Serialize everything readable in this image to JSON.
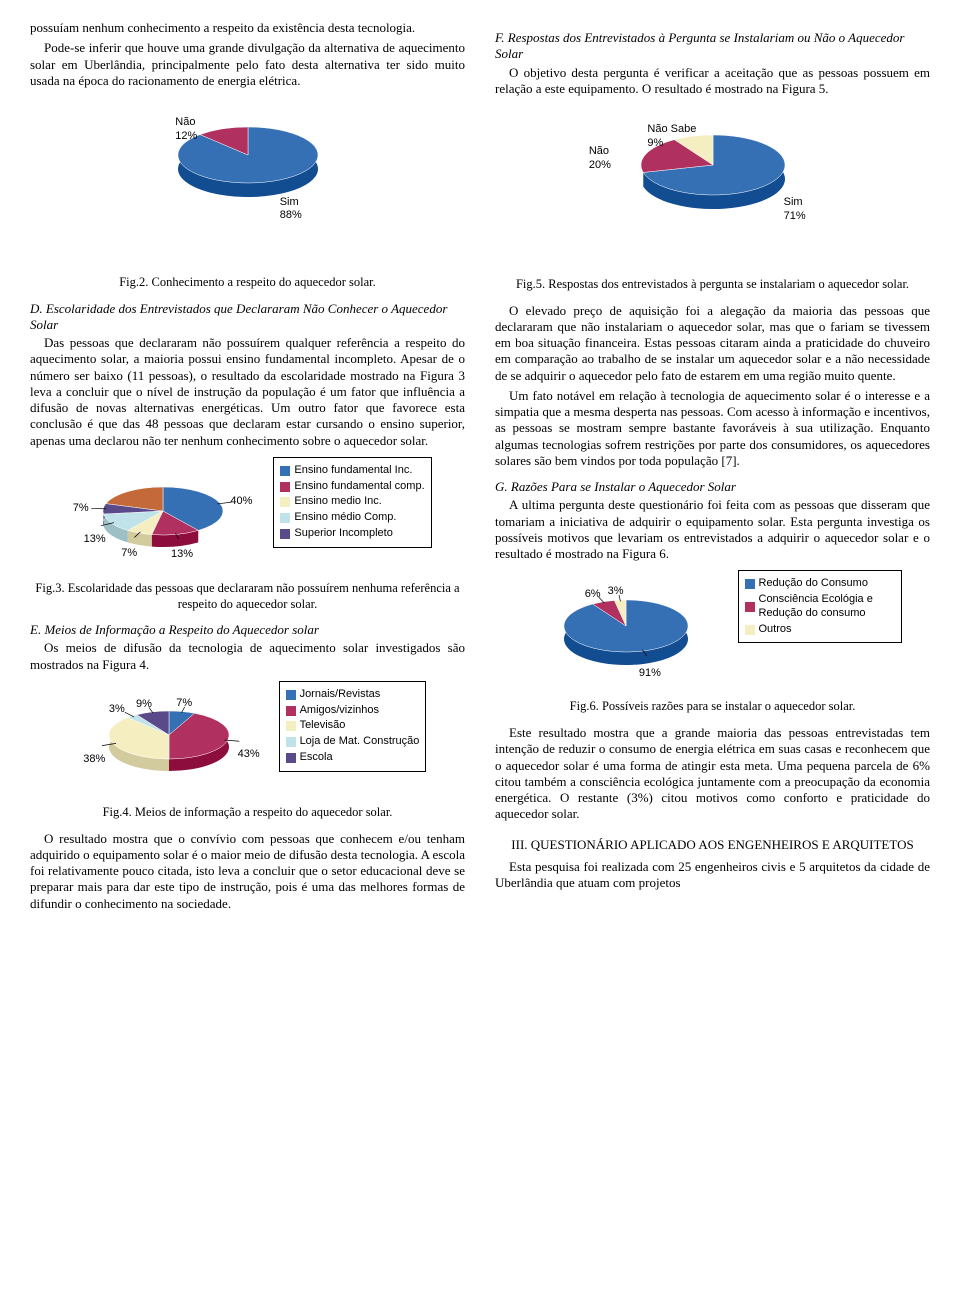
{
  "left": {
    "p1": "possuíam nenhum conhecimento a respeito da existência desta tecnologia.",
    "p2": "Pode-se inferir que houve uma grande divulgação da alternativa de aquecimento solar em Uberlândia, principalmente pelo fato desta alternativa ter sido muito usada na época do racionamento de energia elétrica.",
    "fig2cap": "Fig.2. Conhecimento a respeito do aquecedor solar.",
    "secD": "D. Escolaridade dos Entrevistados que Declararam Não Conhecer o Aquecedor Solar",
    "p3": "Das pessoas que declararam não possuírem qualquer referência a respeito do aquecimento solar, a maioria possui ensino fundamental incompleto. Apesar de o número ser baixo (11 pessoas), o resultado da escolaridade mostrado na Figura 3 leva a concluir que o nível de instrução da população é um fator que influência a difusão de novas alternativas energéticas. Um outro fator que favorece esta conclusão é que das 48 pessoas que declaram estar cursando o ensino superior, apenas uma declarou não ter nenhum conhecimento sobre o aquecedor solar.",
    "fig3cap": "Fig.3. Escolaridade das pessoas que declararam não possuírem nenhuma referência a respeito do aquecedor solar.",
    "secE": "E. Meios de Informação a Respeito do Aquecedor solar",
    "p4": "Os meios de difusão da tecnologia de aquecimento solar investigados são mostrados na Figura 4.",
    "fig4cap": "Fig.4. Meios de informação a respeito do aquecedor solar.",
    "p5": "O resultado mostra que o convívio com pessoas que conhecem e/ou tenham adquirido o equipamento solar é o maior meio de difusão desta tecnologia. A escola foi relativamente pouco citada, isto leva a concluir que o setor educacional deve se preparar mais para dar este tipo de instrução, pois é uma das melhores formas de difundir o conhecimento na sociedade."
  },
  "right": {
    "secF": "F. Respostas dos Entrevistados à Pergunta se Instalariam ou Não o Aquecedor Solar",
    "p1": "O objetivo desta pergunta é verificar a aceitação que as pessoas possuem em relação a este equipamento. O resultado é mostrado na Figura 5.",
    "fig5cap": "Fig.5. Respostas dos entrevistados à pergunta se instalariam o aquecedor solar.",
    "p2": "O elevado preço de aquisição foi a alegação da maioria das pessoas que declararam que não instalariam o aquecedor solar, mas que o fariam se tivessem em boa situação financeira. Estas pessoas citaram ainda a praticidade do chuveiro em comparação ao trabalho de se instalar um aquecedor solar e a não necessidade de se adquirir o aquecedor pelo fato de estarem em uma região muito quente.",
    "p3": "Um fato notável em relação à tecnologia de aquecimento solar é o interesse e a simpatia que a mesma desperta nas pessoas. Com acesso à informação e incentivos, as pessoas se mostram sempre bastante favoráveis à sua utilização. Enquanto algumas tecnologias sofrem restrições por parte dos consumidores, os aquecedores solares são bem vindos por toda população [7].",
    "secG": "G. Razões Para se Instalar o Aquecedor Solar",
    "p4": "A ultima pergunta deste questionário foi feita com as pessoas que disseram que tomariam a iniciativa de adquirir o equipamento solar. Esta pergunta investiga os possíveis motivos que levariam os entrevistados a adquirir o aquecedor solar e o resultado é mostrado na Figura 6.",
    "fig6cap": "Fig.6. Possíveis razões para se instalar o aquecedor solar.",
    "p5": "Este resultado mostra que a grande maioria das pessoas entrevistadas tem intenção de reduzir o consumo de energia elétrica em suas casas e reconhecem que o aquecedor solar é uma forma de atingir esta meta. Uma pequena parcela de 6% citou também a consciência ecológica juntamente com a preocupação da economia energética. O restante (3%) citou motivos como conforto e praticidade do aquecedor solar.",
    "h3": "III. QUESTIONÁRIO APLICADO AOS ENGENHEIROS E ARQUITETOS",
    "p6": "Esta pesquisa foi realizada com 25 engenheiros civis e 5 arquitetos da cidade de Uberlândia que atuam com projetos"
  },
  "charts": {
    "fig2": {
      "type": "pie",
      "slices": [
        {
          "label": "Sim",
          "pct": 88,
          "color": "#3570b5"
        },
        {
          "label": "Não",
          "pct": 12,
          "color": "#b03060"
        }
      ],
      "label_fontsize": 11,
      "label_font": "Arial",
      "background": "#ffffff",
      "depth_color_shift": -30
    },
    "fig5": {
      "type": "pie",
      "slices": [
        {
          "label": "Sim",
          "pct": 71,
          "color": "#3570b5"
        },
        {
          "label": "Não",
          "pct": 20,
          "color": "#b03060"
        },
        {
          "label": "Não Sabe",
          "pct": 9,
          "color": "#f5eec0"
        }
      ],
      "label_fontsize": 11,
      "label_font": "Arial",
      "background": "#ffffff",
      "depth_color_shift": -30
    },
    "fig3": {
      "type": "pie",
      "slices": [
        {
          "label": "Ensino fundamental Inc.",
          "pct": 40,
          "color": "#3570b5",
          "callout": "40%"
        },
        {
          "label": "Ensino fundamental comp.",
          "pct": 13,
          "color": "#b03060",
          "callout": "13%"
        },
        {
          "label": "Ensino medio Inc.",
          "pct": 7,
          "color": "#f5eec0",
          "callout": "7%"
        },
        {
          "label": "Ensino médio Comp.",
          "pct": 13,
          "color": "#bfe3e8",
          "callout": "13%"
        },
        {
          "label": "Superior Incompleto",
          "pct": 7,
          "color": "#5a4a8a",
          "callout": "7%"
        },
        {
          "label": "",
          "pct": 20,
          "color": "#c46a3a",
          "callout": ""
        }
      ],
      "label_fontsize": 11,
      "legend_border": "#000000",
      "background": "#ffffff"
    },
    "fig4": {
      "type": "pie",
      "slices": [
        {
          "label": "Jornais/Revistas",
          "pct": 7,
          "color": "#3570b5",
          "callout": "7%"
        },
        {
          "label": "Amigos/vizinhos",
          "pct": 43,
          "color": "#b03060",
          "callout": "43%"
        },
        {
          "label": "Televisão",
          "pct": 38,
          "color": "#f5eec0",
          "callout": "38%"
        },
        {
          "label": "Loja de Mat. Construção",
          "pct": 3,
          "color": "#bfe3e8",
          "callout": "3%"
        },
        {
          "label": "Escola",
          "pct": 9,
          "color": "#5a4a8a",
          "callout": "9%"
        }
      ],
      "label_fontsize": 11,
      "legend_border": "#000000",
      "background": "#ffffff"
    },
    "fig6": {
      "type": "pie",
      "slices": [
        {
          "label": "Redução do Consumo",
          "pct": 91,
          "color": "#3570b5",
          "callout": "91%"
        },
        {
          "label": "Consciência Ecológia e Redução do consumo",
          "pct": 6,
          "color": "#b03060",
          "callout": "6%"
        },
        {
          "label": "Outros",
          "pct": 3,
          "color": "#f5eec0",
          "callout": "3%"
        }
      ],
      "label_fontsize": 11,
      "legend_border": "#000000",
      "background": "#ffffff"
    }
  }
}
